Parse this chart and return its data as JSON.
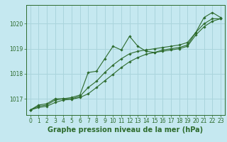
{
  "xlabel": "Graphe pression niveau de la mer (hPa)",
  "bg_color": "#c5e8f0",
  "grid_color": "#aad4dc",
  "line_color": "#2d6b2d",
  "xlim": [
    -0.5,
    23.5
  ],
  "ylim": [
    1016.35,
    1020.75
  ],
  "yticks": [
    1017,
    1018,
    1019,
    1020
  ],
  "xticks": [
    0,
    1,
    2,
    3,
    4,
    5,
    6,
    7,
    8,
    9,
    10,
    11,
    12,
    13,
    14,
    15,
    16,
    17,
    18,
    19,
    20,
    21,
    22,
    23
  ],
  "series1_x": [
    0,
    1,
    2,
    3,
    4,
    5,
    6,
    7,
    8,
    9,
    10,
    11,
    12,
    13,
    14,
    15,
    16,
    17,
    18,
    19,
    20,
    21,
    22,
    23
  ],
  "series1_y": [
    1016.55,
    1016.75,
    1016.8,
    1017.0,
    1017.0,
    1017.05,
    1017.15,
    1018.05,
    1018.1,
    1018.6,
    1019.1,
    1018.95,
    1019.5,
    1019.1,
    1018.9,
    1018.85,
    1018.95,
    1019.0,
    1019.05,
    1019.15,
    1019.65,
    1020.25,
    1020.45,
    1020.25
  ],
  "series2_x": [
    0,
    1,
    2,
    3,
    4,
    5,
    6,
    7,
    8,
    9,
    10,
    11,
    12,
    13,
    14,
    15,
    16,
    17,
    18,
    19,
    20,
    21,
    22,
    23
  ],
  "series2_y": [
    1016.55,
    1016.7,
    1016.75,
    1016.95,
    1017.0,
    1017.0,
    1017.1,
    1017.45,
    1017.7,
    1018.05,
    1018.35,
    1018.6,
    1018.8,
    1018.9,
    1018.95,
    1019.0,
    1019.05,
    1019.1,
    1019.15,
    1019.25,
    1019.65,
    1020.0,
    1020.2,
    1020.2
  ],
  "series3_x": [
    0,
    1,
    2,
    3,
    4,
    5,
    6,
    7,
    8,
    9,
    10,
    11,
    12,
    13,
    14,
    15,
    16,
    17,
    18,
    19,
    20,
    21,
    22,
    23
  ],
  "series3_y": [
    1016.55,
    1016.65,
    1016.7,
    1016.85,
    1016.95,
    1016.98,
    1017.05,
    1017.2,
    1017.45,
    1017.72,
    1017.98,
    1018.25,
    1018.48,
    1018.65,
    1018.78,
    1018.85,
    1018.9,
    1018.95,
    1019.0,
    1019.1,
    1019.55,
    1019.88,
    1020.1,
    1020.2
  ],
  "ticker_fontsize": 5.5,
  "xlabel_fontsize": 7.0
}
